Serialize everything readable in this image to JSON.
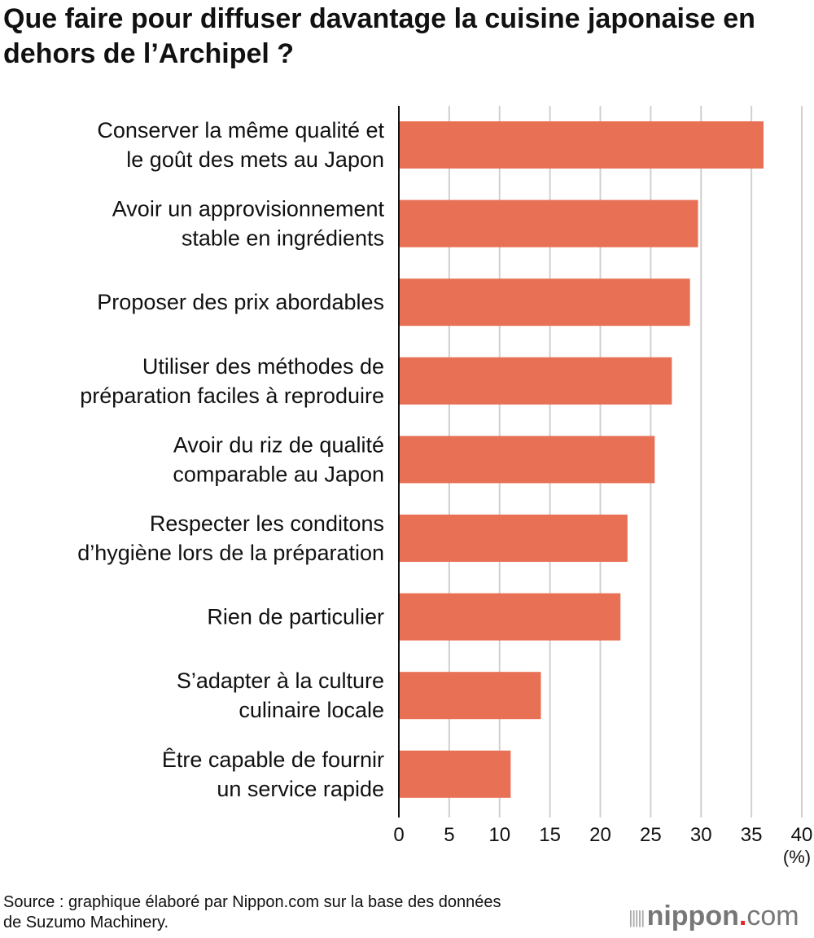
{
  "chart_data": {
    "type": "bar",
    "orientation": "horizontal",
    "title": "Que faire pour diffuser davantage la cuisine japonaise en dehors de l’Archipel ?",
    "categories": [
      [
        "Conserver la même qualité et",
        "le goût des mets au Japon"
      ],
      [
        "Avoir un approvisionnement",
        "stable en ingrédients"
      ],
      [
        "Proposer des prix abordables"
      ],
      [
        "Utiliser des méthodes de",
        "préparation faciles à reproduire"
      ],
      [
        "Avoir du riz de qualité",
        "comparable au Japon"
      ],
      [
        "Respecter les conditons",
        "d’hygiène lors de la préparation"
      ],
      [
        "Rien de particulier"
      ],
      [
        "S’adapter à la culture",
        "culinaire locale"
      ],
      [
        "Être capable de fournir",
        "un service rapide"
      ]
    ],
    "values": [
      36.2,
      29.7,
      28.9,
      27.1,
      25.4,
      22.7,
      22.0,
      14.1,
      11.1
    ],
    "xlim": [
      0,
      40
    ],
    "xticks": [
      "0",
      "5",
      "10",
      "15",
      "20",
      "25",
      "30",
      "35",
      "40"
    ],
    "xunit": "(%)",
    "grid": true,
    "bar_color": "#e87055"
  },
  "source": [
    "Source : graphique élaboré par Nippon.com sur la base des données",
    "de Suzumo Machinery."
  ],
  "logo": {
    "name": "nippon",
    "dot": ".",
    "suffix": "com"
  }
}
